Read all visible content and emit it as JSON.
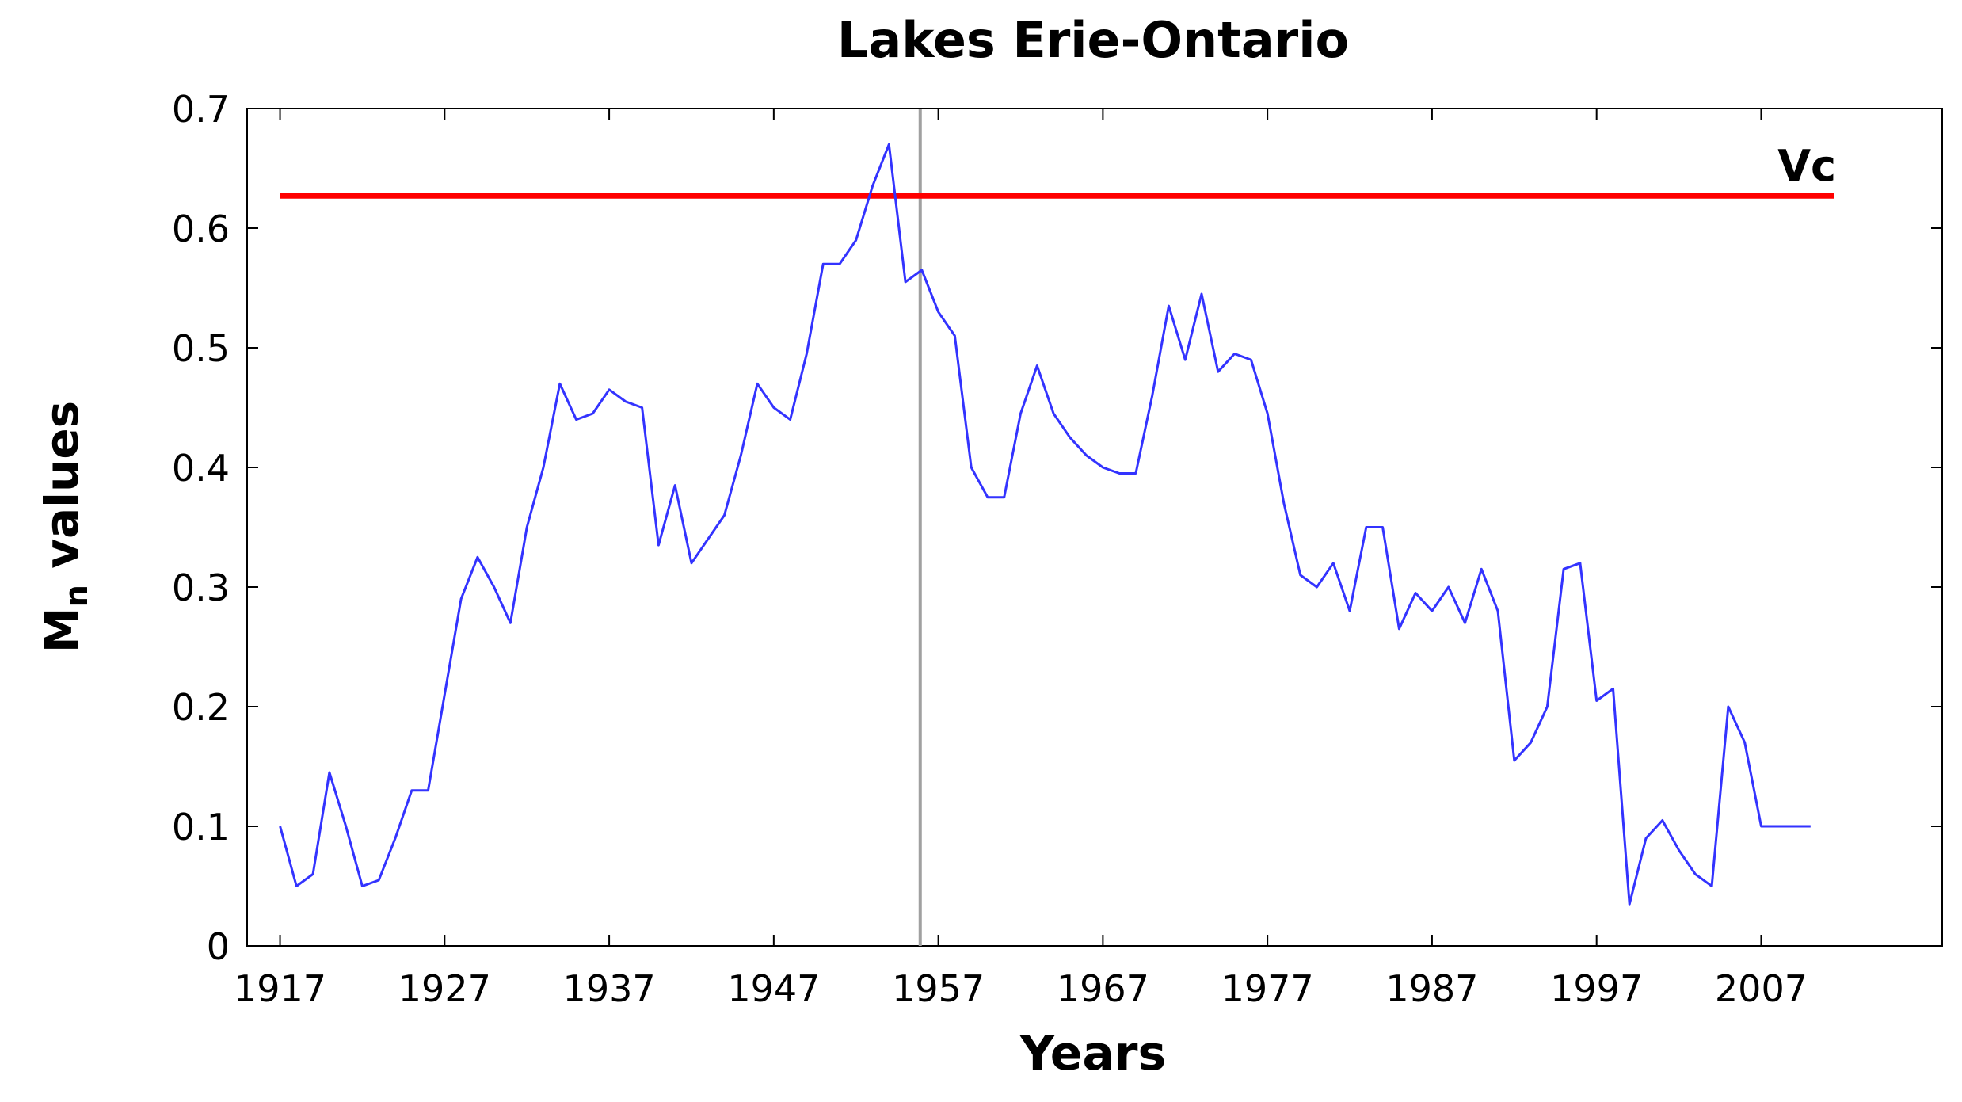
{
  "chart_data": {
    "type": "line",
    "title": "Lakes Erie-Ontario",
    "xlabel": "Years",
    "ylabel_main": "M",
    "ylabel_sub": "n",
    "ylabel_rest": " values",
    "xlim": [
      1915,
      2018
    ],
    "ylim": [
      0,
      0.7
    ],
    "xticks": [
      1917,
      1927,
      1937,
      1947,
      1957,
      1967,
      1977,
      1987,
      1997,
      2007
    ],
    "yticks": [
      0,
      0.1,
      0.2,
      0.3,
      0.4,
      0.5,
      0.6,
      0.7
    ],
    "ytick_labels": [
      "0",
      "0.1",
      "0.2",
      "0.3",
      "0.4",
      "0.5",
      "0.6",
      "0.7"
    ],
    "grid": false,
    "series": [
      {
        "color": "#3333ff",
        "x": [
          1917,
          1918,
          1919,
          1920,
          1921,
          1922,
          1923,
          1924,
          1925,
          1926,
          1927,
          1928,
          1929,
          1930,
          1931,
          1932,
          1933,
          1934,
          1935,
          1936,
          1937,
          1938,
          1939,
          1940,
          1941,
          1942,
          1943,
          1944,
          1945,
          1946,
          1947,
          1948,
          1949,
          1950,
          1951,
          1952,
          1953,
          1954,
          1955,
          1956,
          1957,
          1958,
          1959,
          1960,
          1961,
          1962,
          1963,
          1964,
          1965,
          1966,
          1967,
          1968,
          1969,
          1970,
          1971,
          1972,
          1973,
          1974,
          1975,
          1976,
          1977,
          1978,
          1979,
          1980,
          1981,
          1982,
          1983,
          1984,
          1985,
          1986,
          1987,
          1988,
          1989,
          1990,
          1991,
          1992,
          1993,
          1994,
          1995,
          1996,
          1997,
          1998,
          1999,
          2000,
          2001,
          2002,
          2003,
          2004,
          2005,
          2006,
          2007,
          2008,
          2009,
          2010
        ],
        "y": [
          0.1,
          0.05,
          0.06,
          0.145,
          0.1,
          0.05,
          0.055,
          0.09,
          0.13,
          0.13,
          0.21,
          0.29,
          0.325,
          0.3,
          0.27,
          0.35,
          0.4,
          0.47,
          0.44,
          0.445,
          0.465,
          0.455,
          0.45,
          0.335,
          0.385,
          0.32,
          0.34,
          0.36,
          0.41,
          0.47,
          0.45,
          0.44,
          0.495,
          0.57,
          0.57,
          0.59,
          0.635,
          0.67,
          0.555,
          0.565,
          0.53,
          0.51,
          0.4,
          0.375,
          0.375,
          0.445,
          0.485,
          0.445,
          0.425,
          0.41,
          0.4,
          0.395,
          0.395,
          0.46,
          0.535,
          0.49,
          0.545,
          0.48,
          0.495,
          0.49,
          0.445,
          0.37,
          0.31,
          0.3,
          0.32,
          0.28,
          0.35,
          0.35,
          0.265,
          0.295,
          0.28,
          0.3,
          0.27,
          0.315,
          0.28,
          0.155,
          0.17,
          0.2,
          0.315,
          0.32,
          0.205,
          0.215,
          0.035,
          0.09,
          0.105,
          0.08,
          0.06,
          0.05,
          0.2,
          0.17,
          0.1,
          0.1,
          0.1,
          0.1
        ]
      }
    ],
    "threshold": {
      "label": "Vc",
      "y": 0.627,
      "x_start": 1917,
      "x_end": 2010,
      "color": "#ff0000"
    },
    "vline": {
      "x": 1955.9,
      "color": "#a0a0a0"
    }
  }
}
